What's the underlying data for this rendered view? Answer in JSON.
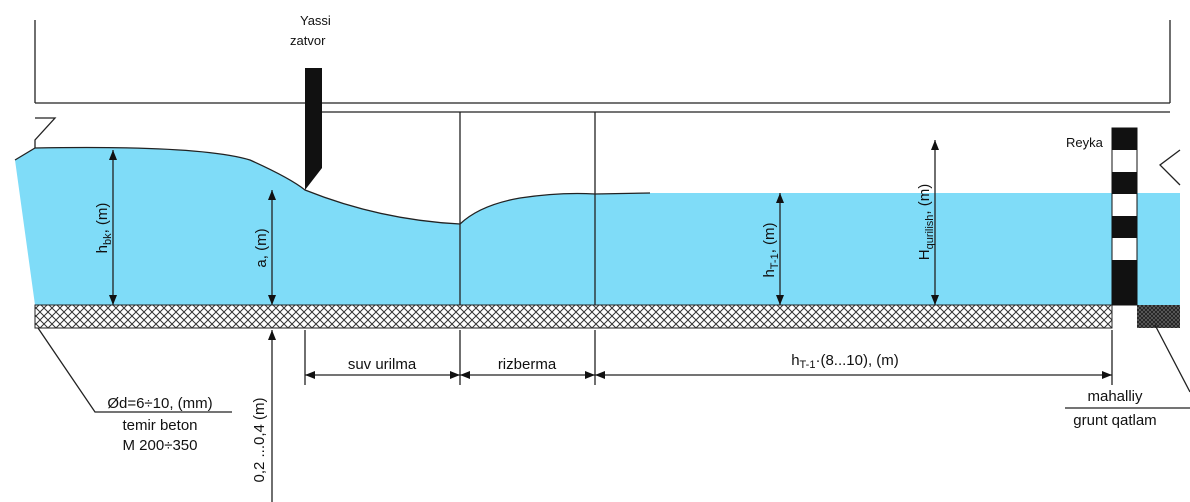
{
  "gate": {
    "line1": "Yassi",
    "line2": "zatvor"
  },
  "staff": {
    "label": "Reyka"
  },
  "dimensions": {
    "h_bk": {
      "base": "h",
      "sub": "bk",
      "rest": ", (m)"
    },
    "a": {
      "text": "a, (m)"
    },
    "h_t1": {
      "base": "h",
      "sub": "T-1",
      "rest": ", (m)"
    },
    "H": {
      "base": "H",
      "sub": "qurilish",
      "rest": ", (m)"
    },
    "drop": {
      "text": "0,2 ...0,4 (m)"
    }
  },
  "sections": {
    "stilling": "suv urilma",
    "apron": "rizberma",
    "length": {
      "base": "h",
      "sub": "T-1",
      "rest": "·(8...10), (m)"
    }
  },
  "slab": {
    "line1": "Ød=6÷10, (mm)",
    "line2": "temir beton",
    "line3": "M 200÷350"
  },
  "soil": {
    "line1": "mahalliy",
    "line2": "grunt qatlam"
  }
}
